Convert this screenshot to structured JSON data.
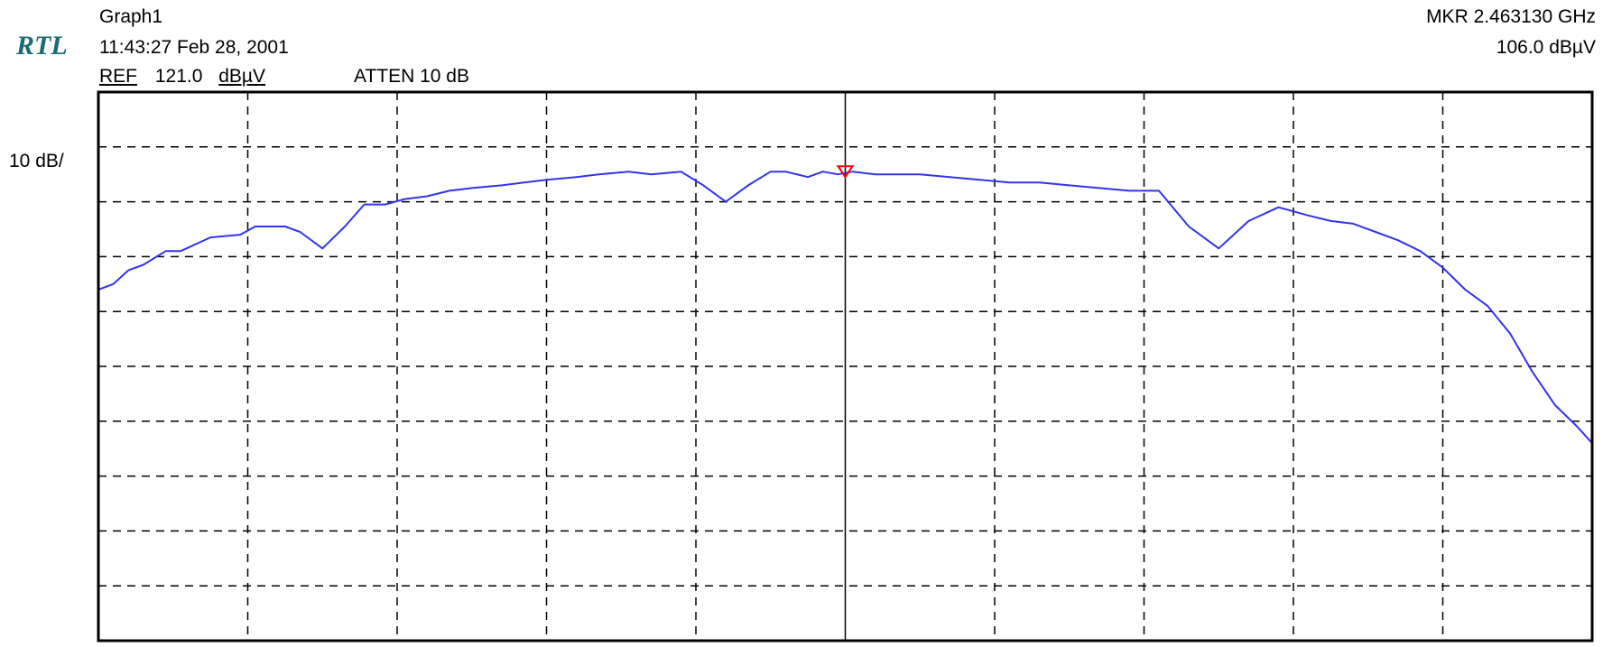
{
  "header": {
    "logo_text": "RTL",
    "logo_color": "#1b6b73",
    "graph_title": "Graph1",
    "timestamp": "11:43:27 Feb 28, 2001",
    "ref_label": "REF",
    "ref_value": "121.0",
    "ref_unit": "dBµV",
    "atten": "ATTEN 10 dB",
    "marker_freq": "MKR  2.463130 GHz",
    "marker_level": "106.0  dBµV",
    "scale": "10 dB/"
  },
  "chart_data": {
    "type": "line",
    "title": "",
    "xlabel": "",
    "ylabel": "",
    "x_divisions": 10,
    "y_divisions": 10,
    "ylim": [
      21.0,
      121.0
    ],
    "ref_level_dbuv": 121.0,
    "scale_db_per_div": 10,
    "grid": true,
    "grid_style": "dashed",
    "center_line": true,
    "trace_color": "#3333ee",
    "marker_color": "#ff0000",
    "marker": {
      "x_div": 5.0,
      "level_dbuv": 106.0
    },
    "series": [
      {
        "x_div": [
          0.0,
          0.1,
          0.2,
          0.3,
          0.45,
          0.55,
          0.75,
          0.95,
          1.05,
          1.25,
          1.35,
          1.5,
          1.65,
          1.78,
          1.92,
          2.05,
          2.2,
          2.35,
          2.5,
          2.7,
          2.85,
          3.0,
          3.2,
          3.35,
          3.55,
          3.7,
          3.9,
          4.05,
          4.2,
          4.35,
          4.5,
          4.6,
          4.75,
          4.85,
          4.95,
          5.05,
          5.2,
          5.35,
          5.5,
          5.7,
          5.9,
          6.1,
          6.3,
          6.5,
          6.7,
          6.9,
          7.1,
          7.3,
          7.5,
          7.7,
          7.9,
          8.1,
          8.25,
          8.4,
          8.55,
          8.7,
          8.85,
          9.0,
          9.15,
          9.3,
          9.45,
          9.6,
          9.75,
          9.9,
          10.0
        ],
        "level_dbuv": [
          85.0,
          86.0,
          88.5,
          89.5,
          92.0,
          92.0,
          94.5,
          95.0,
          96.5,
          96.5,
          95.5,
          92.5,
          96.5,
          100.5,
          100.5,
          101.5,
          102.0,
          103.0,
          103.5,
          104.0,
          104.5,
          105.0,
          105.5,
          106.0,
          106.5,
          106.0,
          106.5,
          104.0,
          101.0,
          104.0,
          106.5,
          106.5,
          105.5,
          106.5,
          106.0,
          106.5,
          106.0,
          106.0,
          106.0,
          105.5,
          105.0,
          104.5,
          104.5,
          104.0,
          103.5,
          103.0,
          103.0,
          96.5,
          92.5,
          97.5,
          100.0,
          98.5,
          97.5,
          97.0,
          95.5,
          94.0,
          92.0,
          89.0,
          85.0,
          82.0,
          77.0,
          70.0,
          64.0,
          60.0,
          57.0
        ]
      }
    ]
  }
}
